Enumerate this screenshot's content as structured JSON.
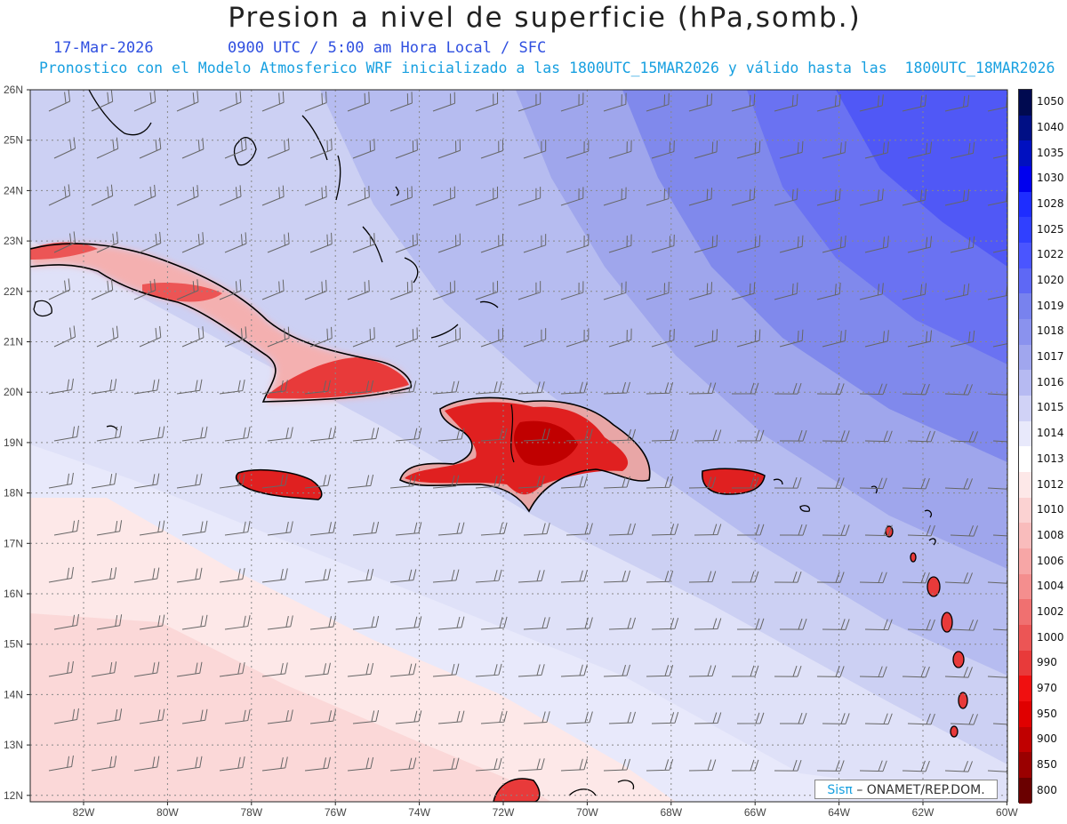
{
  "title": "Presion a nivel de superficie (hPa,somb.)",
  "date": "17-Mar-2026",
  "time_info": "0900 UTC / 5:00 am Hora Local / SFC",
  "forecast_info": "Pronostico con el Modelo Atmosferico WRF inicializado a las 1800UTC_15MAR2026 y válido hasta las  1800UTC_18MAR2026",
  "credit": {
    "brand": "Sisπ",
    "text": "– ONAMET/REP.DOM."
  },
  "lat_labels": [
    "26N",
    "25N",
    "24N",
    "23N",
    "22N",
    "21N",
    "20N",
    "19N",
    "18N",
    "17N",
    "16N",
    "15N",
    "14N",
    "13N",
    "12N"
  ],
  "lon_labels": [
    "82W",
    "80W",
    "78W",
    "76W",
    "74W",
    "72W",
    "70W",
    "68W",
    "66W",
    "64W",
    "62W",
    "60W"
  ],
  "colorbar": {
    "labels": [
      "1050",
      "1040",
      "1035",
      "1030",
      "1028",
      "1025",
      "1022",
      "1020",
      "1019",
      "1018",
      "1017",
      "1016",
      "1015",
      "1014",
      "1013",
      "1012",
      "1010",
      "1008",
      "1006",
      "1004",
      "1002",
      "1000",
      "990",
      "970",
      "950",
      "900",
      "850",
      "800"
    ],
    "colors": [
      "#000a50",
      "#000f85",
      "#0010c0",
      "#0000ee",
      "#1e2dff",
      "#3040ff",
      "#4a55ff",
      "#5e68f5",
      "#7882ee",
      "#8a92ee",
      "#a0a6ee",
      "#b6baf2",
      "#d0d2f6",
      "#e8e9fb",
      "#ffffff",
      "#fde8e8",
      "#fbd2d2",
      "#f9bcbc",
      "#f7a6a6",
      "#f48e8e",
      "#f07070",
      "#ec5555",
      "#e83a3a",
      "#f01010",
      "#e00000",
      "#c00000",
      "#9a0000",
      "#6a0000"
    ]
  },
  "colors": {
    "title": "#222222",
    "date": "#2f4fe0",
    "forecast": "#18a0e0"
  }
}
